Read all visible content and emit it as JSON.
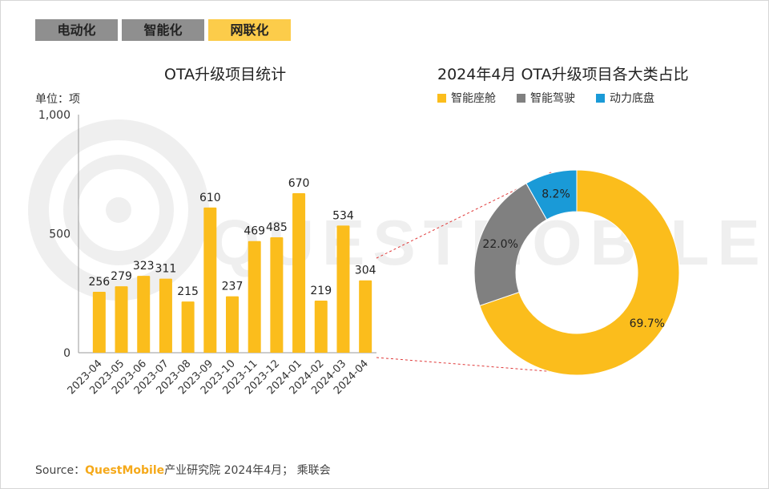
{
  "tabs": [
    {
      "label": "电动化",
      "active": false
    },
    {
      "label": "智能化",
      "active": false
    },
    {
      "label": "网联化",
      "active": true
    }
  ],
  "watermark": "QUESTMOBILE",
  "source": {
    "prefix": "Source：",
    "brand": "QuestMobile",
    "suffix": "产业研究院 2024年4月； 乘联会"
  },
  "colors": {
    "bar": "#fbbd1c",
    "cockpit": "#fbbd1c",
    "driving": "#808080",
    "chassis": "#1a9ad7",
    "tab_active": "#fccc4a",
    "tab_inactive": "#8f8f8f"
  },
  "chart_data": [
    {
      "type": "bar",
      "title": "OTA升级项目统计",
      "unit_label": "单位：项",
      "categories": [
        "2023-04",
        "2023-05",
        "2023-06",
        "2023-07",
        "2023-08",
        "2023-09",
        "2023-10",
        "2023-11",
        "2023-12",
        "2024-01",
        "2024-02",
        "2024-03",
        "2024-04"
      ],
      "values": [
        256,
        279,
        323,
        311,
        215,
        610,
        237,
        469,
        485,
        670,
        219,
        534,
        304
      ],
      "ylim": [
        0,
        1000
      ],
      "yticks": [
        0,
        500,
        1000
      ],
      "ytick_labels": [
        "0",
        "500",
        "1,000"
      ],
      "grid": false
    },
    {
      "type": "pie",
      "donut": true,
      "title": "2024年4月 OTA升级项目各大类占比",
      "legend_position": "top",
      "slices": [
        {
          "name": "智能座舱",
          "value": 69.7,
          "label": "69.7%",
          "color": "#fbbd1c"
        },
        {
          "name": "智能驾驶",
          "value": 22.0,
          "label": "22.0%",
          "color": "#808080"
        },
        {
          "name": "动力底盘",
          "value": 8.2,
          "label": "8.2%",
          "color": "#1a9ad7"
        }
      ]
    }
  ]
}
